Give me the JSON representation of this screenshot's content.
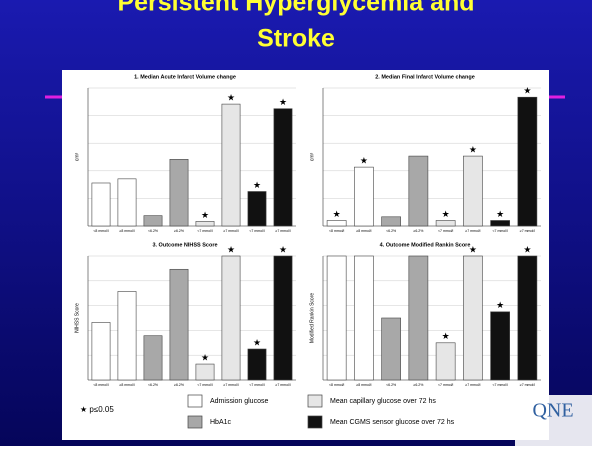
{
  "slide": {
    "title_lines": [
      "Persistent Hyperglycemia and",
      "Stroke"
    ]
  },
  "significance_marker": "★",
  "chart_data": [
    {
      "type": "bar",
      "title": "1. Median Acute Infarct Volume change",
      "y_label": "cm³",
      "categories": [
        "<8 mmol/l",
        "≥8 mmol/l",
        "<6.2%",
        "≥6.2%",
        "<7 mmol/l",
        "≥7 mmol/l",
        "<7 mmol/l",
        "≥7 mmol/l"
      ],
      "values": [
        18.7,
        20.5,
        4.5,
        29,
        2,
        53,
        15,
        51
      ],
      "colors": [
        "#ffffff",
        "#ffffff",
        "#a8a8a8",
        "#a8a8a8",
        "#e6e6e6",
        "#e6e6e6",
        "#111111",
        "#111111"
      ],
      "significant": [
        false,
        false,
        false,
        false,
        true,
        true,
        true,
        true
      ],
      "ylim": [
        0,
        60
      ]
    },
    {
      "type": "bar",
      "title": "2. Median Final Infarct Volume change",
      "y_label": "cm³",
      "categories": [
        "<8 mmol/l",
        "≥8 mmol/l",
        "<6.2%",
        "≥6.2%",
        "<7 mmol/l",
        "≥7 mmol/l",
        "<7 mmol/l",
        "≥7 mmol/l"
      ],
      "values": [
        3,
        32,
        5,
        38,
        3,
        38,
        3,
        70
      ],
      "colors": [
        "#ffffff",
        "#ffffff",
        "#a8a8a8",
        "#a8a8a8",
        "#e6e6e6",
        "#e6e6e6",
        "#111111",
        "#111111"
      ],
      "significant": [
        true,
        true,
        false,
        false,
        true,
        true,
        true,
        true
      ],
      "ylim": [
        0,
        75
      ]
    },
    {
      "type": "bar",
      "title": "3. Outcome NIHSS Score",
      "y_label": "NIHSS Score",
      "categories": [
        "<8 mmol/l",
        "≥8 mmol/l",
        "<6.2%",
        "≥6.2%",
        "<7 mmol/l",
        "≥7 mmol/l",
        "<7 mmol/l",
        "≥7 mmol/l"
      ],
      "values": [
        6.5,
        10,
        5,
        12.5,
        1.8,
        14,
        3.5,
        14
      ],
      "colors": [
        "#ffffff",
        "#ffffff",
        "#a8a8a8",
        "#a8a8a8",
        "#e6e6e6",
        "#e6e6e6",
        "#111111",
        "#111111"
      ],
      "significant": [
        false,
        false,
        false,
        false,
        true,
        true,
        true,
        true
      ],
      "ylim": [
        0,
        14
      ]
    },
    {
      "type": "bar",
      "title": "4. Outcome Modified Rankin Score",
      "y_label": "Modified Rankin Score",
      "categories": [
        "<8 mmol/l",
        "≥8 mmol/l",
        "<6.2%",
        "≥6.2%",
        "<7 mmol/l",
        "≥7 mmol/l",
        "<7 mmol/l",
        "≥7 mmol/l"
      ],
      "values": [
        4,
        4,
        2,
        4,
        1.2,
        4,
        2.2,
        4
      ],
      "colors": [
        "#ffffff",
        "#ffffff",
        "#a8a8a8",
        "#a8a8a8",
        "#e6e6e6",
        "#e6e6e6",
        "#111111",
        "#111111"
      ],
      "significant": [
        false,
        false,
        false,
        false,
        true,
        true,
        true,
        true
      ],
      "ylim": [
        0,
        4
      ]
    }
  ],
  "legend": {
    "significance": "★ p≤0.05",
    "items": [
      {
        "name": "Admission glucose",
        "color": "#ffffff"
      },
      {
        "name": "HbA1c",
        "color": "#a8a8a8"
      },
      {
        "name": "Mean capillary glucose over 72 hs",
        "color": "#e6e6e6"
      },
      {
        "name": "Mean CGMS sensor glucose over 72 hs",
        "color": "#111111"
      }
    ]
  },
  "logo": "QNE"
}
